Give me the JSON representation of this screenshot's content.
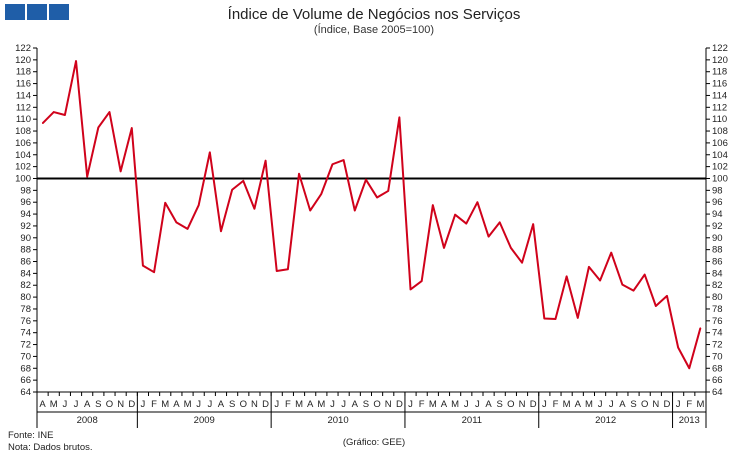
{
  "header": {
    "title": "Índice de Volume de Negócios nos Serviços",
    "subtitle": "(Índice, Base 2005=100)"
  },
  "footer": {
    "source": "Fonte: INE",
    "note": "Nota: Dados brutos.",
    "credit": "(Gráfico: GEE)"
  },
  "colors": {
    "series": "#d0021b",
    "reference_line": "#000000",
    "logo": "#1f5ea8"
  },
  "chart_data": {
    "type": "line",
    "ylim": [
      64,
      122
    ],
    "y_ticks": [
      64,
      66,
      68,
      70,
      72,
      74,
      76,
      78,
      80,
      82,
      84,
      86,
      88,
      90,
      92,
      94,
      96,
      98,
      100,
      102,
      104,
      106,
      108,
      110,
      112,
      114,
      116,
      118,
      120,
      122
    ],
    "reference_value": 100,
    "grid": false,
    "month_labels": [
      "A",
      "M",
      "J",
      "J",
      "A",
      "S",
      "O",
      "N",
      "D",
      "J",
      "F",
      "M",
      "A",
      "M",
      "J",
      "J",
      "A",
      "S",
      "O",
      "N",
      "D",
      "J",
      "F",
      "M",
      "A",
      "M",
      "J",
      "J",
      "A",
      "S",
      "O",
      "N",
      "D",
      "J",
      "F",
      "M",
      "A",
      "M",
      "J",
      "J",
      "A",
      "S",
      "O",
      "N",
      "D",
      "J",
      "F",
      "M",
      "A",
      "M",
      "J",
      "J",
      "A",
      "S",
      "O",
      "N",
      "D",
      "J",
      "F",
      "M"
    ],
    "years": [
      {
        "label": "2008",
        "start": 0,
        "count": 9
      },
      {
        "label": "2009",
        "start": 9,
        "count": 12
      },
      {
        "label": "2010",
        "start": 21,
        "count": 12
      },
      {
        "label": "2011",
        "start": 33,
        "count": 12
      },
      {
        "label": "2012",
        "start": 45,
        "count": 12
      },
      {
        "label": "2013",
        "start": 57,
        "count": 3
      }
    ],
    "series": [
      {
        "values": [
          109.3,
          111.2,
          110.7,
          119.8,
          100.3,
          108.6,
          111.2,
          101.2,
          108.5,
          85.3,
          84.2,
          95.9,
          92.6,
          91.5,
          95.5,
          104.4,
          91.1,
          98.1,
          99.6,
          94.9,
          103.0,
          84.4,
          84.7,
          100.8,
          94.6,
          97.4,
          102.4,
          103.1,
          94.6,
          99.8,
          96.8,
          97.9,
          110.3,
          81.3,
          82.7,
          95.5,
          88.3,
          93.9,
          92.4,
          96.0,
          90.2,
          92.6,
          88.3,
          85.8,
          92.3,
          76.4,
          76.3,
          83.5,
          76.5,
          85.1,
          82.8,
          87.5,
          82.1,
          81.1,
          83.8,
          78.5,
          80.2,
          71.5,
          68.0,
          74.8
        ]
      }
    ]
  }
}
